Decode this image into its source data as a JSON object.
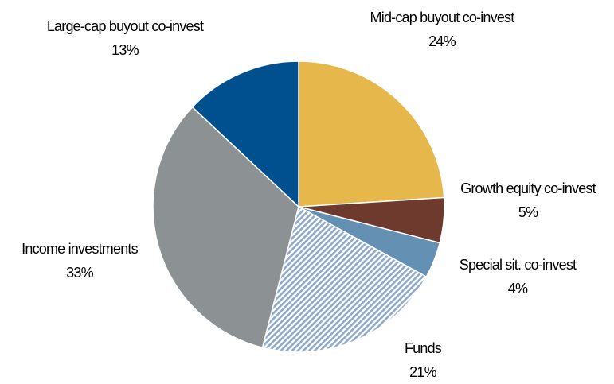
{
  "chart_data": {
    "type": "pie",
    "categories": [
      "Mid-cap buyout co-invest",
      "Growth equity co-invest",
      "Special sit. co-invest",
      "Funds",
      "Income investments",
      "Large-cap buyout co-invest"
    ],
    "values": [
      24,
      5,
      4,
      21,
      33,
      13
    ],
    "value_labels": [
      "24%",
      "5%",
      "4%",
      "21%",
      "33%",
      "13%"
    ],
    "colors": [
      "#e6b84c",
      "#6e3a2e",
      "#6490b4",
      "#8fa9cc",
      "#8c9194",
      "#00508f"
    ],
    "hatched": [
      false,
      false,
      false,
      true,
      false,
      false
    ]
  }
}
